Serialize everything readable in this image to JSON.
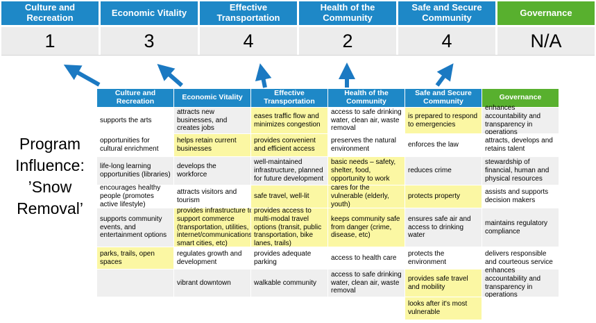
{
  "program_label": "Program Influence: ’Snow Removal’",
  "colors": {
    "header_blue": "#1e88c7",
    "header_green": "#58b02e",
    "highlight_yellow": "#fbf7a3",
    "band_gray": "#efefef",
    "score_gray": "#ececec",
    "arrow_blue": "#1b79c2"
  },
  "summary": {
    "columns": [
      {
        "label": "Culture and Recreation",
        "score": "1",
        "color": "blue"
      },
      {
        "label": "Economic Vitality",
        "score": "3",
        "color": "blue"
      },
      {
        "label": "Effective Transportation",
        "score": "4",
        "color": "blue"
      },
      {
        "label": "Health of the Community",
        "score": "2",
        "color": "blue"
      },
      {
        "label": "Safe and Secure Community",
        "score": "4",
        "color": "blue"
      },
      {
        "label": "Governance",
        "score": "N/A",
        "color": "green"
      }
    ]
  },
  "matrix": {
    "headers": [
      {
        "label": "Culture and Recreation",
        "color": "blue"
      },
      {
        "label": "Economic Vitality",
        "color": "blue"
      },
      {
        "label": "Effective Transportation",
        "color": "blue"
      },
      {
        "label": "Health of the Community",
        "color": "blue"
      },
      {
        "label": "Safe and Secure Community",
        "color": "blue"
      },
      {
        "label": "Governance",
        "color": "green"
      }
    ],
    "rows": [
      [
        {
          "t": "supports the arts",
          "bg": "w"
        },
        {
          "t": "attracts new businesses, and creates jobs",
          "bg": "g"
        },
        {
          "t": "eases traffic flow and minimizes congestion",
          "bg": "y"
        },
        {
          "t": "access to safe drinking water, clean air, waste removal",
          "bg": "w"
        },
        {
          "t": "is prepared to respond to emergencies",
          "bg": "y"
        },
        {
          "t": "enhances accountability and transparency in operations",
          "bg": "g"
        }
      ],
      [
        {
          "t": "opportunities for cultural enrichment",
          "bg": "w"
        },
        {
          "t": "helps retain current businesses",
          "bg": "y"
        },
        {
          "t": "provides convenient and efficient access",
          "bg": "y"
        },
        {
          "t": "preserves the natural environment",
          "bg": "w"
        },
        {
          "t": "enforces the law",
          "bg": "w"
        },
        {
          "t": "attracts, develops and retains talent",
          "bg": "w"
        }
      ],
      [
        {
          "t": "life-long learning opportunities (libraries)",
          "bg": "g"
        },
        {
          "t": "develops the workforce",
          "bg": "g"
        },
        {
          "t": "well-maintained infrastructure, planned for future development",
          "bg": "g"
        },
        {
          "t": "basic needs – safety, shelter, food, opportunity to work",
          "bg": "y"
        },
        {
          "t": "reduces crime",
          "bg": "g"
        },
        {
          "t": "stewardship of financial, human and physical resources",
          "bg": "g"
        }
      ],
      [
        {
          "t": "encourages healthy people (promotes active lifestyle)",
          "bg": "w"
        },
        {
          "t": "attracts visitors and tourism",
          "bg": "w"
        },
        {
          "t": "safe travel, well-lit",
          "bg": "y"
        },
        {
          "t": "cares for the vulnerable (elderly, youth)",
          "bg": "y"
        },
        {
          "t": "protects property",
          "bg": "y"
        },
        {
          "t": "assists and supports decision makers",
          "bg": "w"
        }
      ],
      [
        {
          "t": "supports community events, and entertainment options",
          "bg": "g"
        },
        {
          "t": "provides infrastructure to support commerce (transportation, utilities, internet/communications, smart cities, etc)",
          "bg": "y"
        },
        {
          "t": "provides access to multi-modal travel options (transit, public transportation, bike lanes, trails)",
          "bg": "y"
        },
        {
          "t": "keeps community safe from danger (crime, disease, etc)",
          "bg": "y"
        },
        {
          "t": "ensures safe air and access to drinking water",
          "bg": "g"
        },
        {
          "t": "maintains regulatory compliance",
          "bg": "g"
        }
      ],
      [
        {
          "t": "parks, trails, open spaces",
          "bg": "y"
        },
        {
          "t": "regulates growth and development",
          "bg": "w"
        },
        {
          "t": "provides adequate parking",
          "bg": "w"
        },
        {
          "t": "access to health care",
          "bg": "w"
        },
        {
          "t": "protects the environment",
          "bg": "w"
        },
        {
          "t": "delivers responsible and courteous service",
          "bg": "w"
        }
      ],
      [
        {
          "t": "",
          "bg": "g"
        },
        {
          "t": "vibrant downtown",
          "bg": "g"
        },
        {
          "t": "walkable community",
          "bg": "g"
        },
        {
          "t": "access to safe drinking water, clean air, waste removal",
          "bg": "g"
        },
        {
          "t": "provides safe travel and mobility",
          "bg": "y"
        },
        {
          "t": "enhances accountability and transparency in operations",
          "bg": "g"
        }
      ],
      [
        {
          "t": "",
          "bg": "w"
        },
        {
          "t": "",
          "bg": "w"
        },
        {
          "t": "",
          "bg": "w"
        },
        {
          "t": "",
          "bg": "w"
        },
        {
          "t": "looks after it's most vulnerable",
          "bg": "y"
        },
        {
          "t": "",
          "bg": "w"
        }
      ]
    ]
  }
}
